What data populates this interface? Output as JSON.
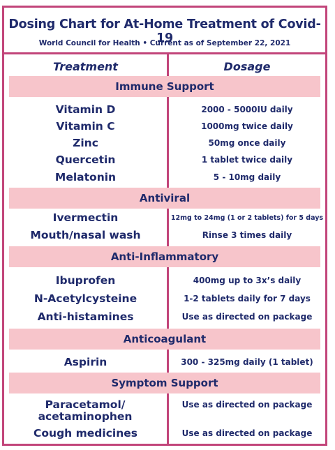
{
  "header": {
    "title": "Dosing Chart for At-Home Treatment of Covid-19",
    "subtitle": "World Council for Health • Current as of September 22, 2021"
  },
  "columns": {
    "treatment": "Treatment",
    "dosage": "Dosage"
  },
  "sections": [
    {
      "name": "Immune Support",
      "rows": [
        {
          "treatment": "Vitamin D",
          "dosage": "2000 - 5000IU daily"
        },
        {
          "treatment": "Vitamin C",
          "dosage": "1000mg twice daily"
        },
        {
          "treatment": "Zinc",
          "dosage": "50mg once daily"
        },
        {
          "treatment": "Quercetin",
          "dosage": "1 tablet twice daily"
        },
        {
          "treatment": "Melatonin",
          "dosage": "5 - 10mg daily"
        }
      ]
    },
    {
      "name": "Antiviral",
      "rows": [
        {
          "treatment": "Ivermectin",
          "dosage": "12mg to 24mg (1 or 2 tablets) for 5 days"
        },
        {
          "treatment": "Mouth/nasal wash",
          "dosage": "Rinse 3 times daily"
        }
      ]
    },
    {
      "name": "Anti-Inflammatory",
      "rows": [
        {
          "treatment": "Ibuprofen",
          "dosage": "400mg up to 3x’s daily"
        },
        {
          "treatment": "N-Acetylcysteine",
          "dosage": "1-2 tablets daily for 7 days"
        },
        {
          "treatment": "Anti-histamines",
          "dosage": "Use as directed on package"
        }
      ]
    },
    {
      "name": "Anticoagulant",
      "rows": [
        {
          "treatment": "Aspirin",
          "dosage": "300 - 325mg daily (1 tablet)"
        }
      ]
    },
    {
      "name": "Symptom Support",
      "rows": [
        {
          "treatment": "Paracetamol/ acetaminophen",
          "dosage": "Use as directed on package"
        },
        {
          "treatment": "Cough medicines",
          "dosage": "Use as directed on package"
        }
      ]
    }
  ]
}
